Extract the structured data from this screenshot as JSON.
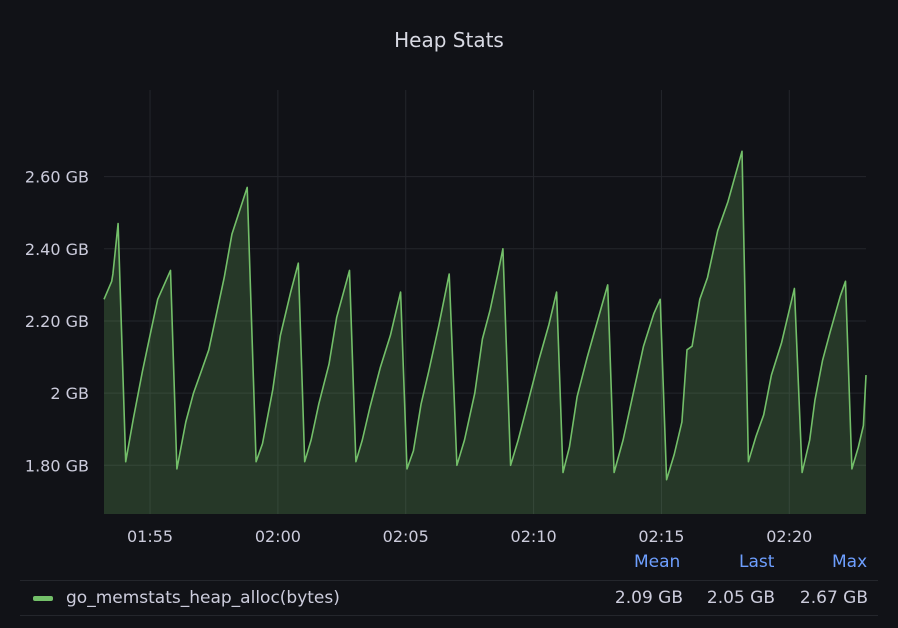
{
  "panel": {
    "title": "Heap Stats"
  },
  "legend": {
    "headers": {
      "mean": "Mean",
      "last": "Last",
      "max": "Max"
    },
    "series_name": "go_memstats_heap_alloc(bytes)",
    "mean": "2.09 GB",
    "last": "2.05 GB",
    "max": "2.67 GB",
    "color": "#73bf69"
  },
  "chart_data": {
    "type": "area",
    "title": "Heap Stats",
    "xlabel": "",
    "ylabel": "",
    "x_unit": "minutes since 01:53 (clock time)",
    "x_ticks": [
      {
        "x": 1.8,
        "label": "01:55"
      },
      {
        "x": 6.8,
        "label": "02:00"
      },
      {
        "x": 11.8,
        "label": "02:05"
      },
      {
        "x": 16.8,
        "label": "02:10"
      },
      {
        "x": 21.8,
        "label": "02:15"
      },
      {
        "x": 26.8,
        "label": "02:20"
      }
    ],
    "y_ticks": [
      {
        "y": 1.8,
        "label": "1.80 GB"
      },
      {
        "y": 2.0,
        "label": "2 GB"
      },
      {
        "y": 2.2,
        "label": "2.20 GB"
      },
      {
        "y": 2.4,
        "label": "2.40 GB"
      },
      {
        "y": 2.6,
        "label": "2.60 GB"
      }
    ],
    "xlim": [
      0,
      29.8
    ],
    "ylim": [
      1.665,
      2.84
    ],
    "grid": true,
    "legend_position": "bottom",
    "series": [
      {
        "name": "go_memstats_heap_alloc(bytes)",
        "color": "#73bf69",
        "points": [
          [
            0.0,
            2.26
          ],
          [
            0.3,
            2.31
          ],
          [
            0.35,
            2.33
          ],
          [
            0.55,
            2.47
          ],
          [
            0.85,
            1.81
          ],
          [
            1.15,
            1.93
          ],
          [
            1.5,
            2.06
          ],
          [
            1.8,
            2.16
          ],
          [
            2.1,
            2.26
          ],
          [
            2.6,
            2.34
          ],
          [
            2.85,
            1.79
          ],
          [
            3.2,
            1.92
          ],
          [
            3.5,
            2.0
          ],
          [
            3.8,
            2.06
          ],
          [
            4.1,
            2.12
          ],
          [
            4.4,
            2.22
          ],
          [
            4.7,
            2.32
          ],
          [
            5.0,
            2.44
          ],
          [
            5.6,
            2.57
          ],
          [
            5.95,
            1.81
          ],
          [
            6.2,
            1.86
          ],
          [
            6.6,
            2.01
          ],
          [
            6.9,
            2.16
          ],
          [
            7.3,
            2.28
          ],
          [
            7.6,
            2.36
          ],
          [
            7.85,
            1.81
          ],
          [
            8.1,
            1.87
          ],
          [
            8.4,
            1.97
          ],
          [
            8.8,
            2.08
          ],
          [
            9.1,
            2.21
          ],
          [
            9.6,
            2.34
          ],
          [
            9.85,
            1.81
          ],
          [
            10.1,
            1.87
          ],
          [
            10.4,
            1.96
          ],
          [
            10.8,
            2.07
          ],
          [
            11.2,
            2.16
          ],
          [
            11.6,
            2.28
          ],
          [
            11.85,
            1.79
          ],
          [
            12.1,
            1.84
          ],
          [
            12.4,
            1.97
          ],
          [
            12.7,
            2.06
          ],
          [
            13.1,
            2.19
          ],
          [
            13.5,
            2.33
          ],
          [
            13.8,
            1.8
          ],
          [
            14.1,
            1.87
          ],
          [
            14.5,
            2.0
          ],
          [
            14.8,
            2.15
          ],
          [
            15.1,
            2.23
          ],
          [
            15.4,
            2.33
          ],
          [
            15.6,
            2.4
          ],
          [
            15.9,
            1.8
          ],
          [
            16.2,
            1.87
          ],
          [
            16.6,
            1.98
          ],
          [
            17.0,
            2.09
          ],
          [
            17.4,
            2.19
          ],
          [
            17.7,
            2.28
          ],
          [
            17.95,
            1.78
          ],
          [
            18.2,
            1.85
          ],
          [
            18.5,
            1.99
          ],
          [
            18.9,
            2.1
          ],
          [
            19.3,
            2.2
          ],
          [
            19.7,
            2.3
          ],
          [
            19.95,
            1.78
          ],
          [
            20.3,
            1.87
          ],
          [
            20.7,
            2.0
          ],
          [
            21.1,
            2.13
          ],
          [
            21.5,
            2.22
          ],
          [
            21.75,
            2.26
          ],
          [
            22.0,
            1.76
          ],
          [
            22.3,
            1.83
          ],
          [
            22.6,
            1.92
          ],
          [
            22.8,
            2.12
          ],
          [
            23.0,
            2.13
          ],
          [
            23.3,
            2.26
          ],
          [
            23.6,
            2.32
          ],
          [
            24.0,
            2.45
          ],
          [
            24.4,
            2.53
          ],
          [
            24.95,
            2.67
          ],
          [
            25.2,
            1.81
          ],
          [
            25.5,
            1.88
          ],
          [
            25.8,
            1.94
          ],
          [
            26.1,
            2.05
          ],
          [
            26.5,
            2.14
          ],
          [
            26.8,
            2.23
          ],
          [
            27.0,
            2.29
          ],
          [
            27.3,
            1.78
          ],
          [
            27.6,
            1.87
          ],
          [
            27.8,
            1.98
          ],
          [
            28.1,
            2.09
          ],
          [
            28.4,
            2.17
          ],
          [
            28.8,
            2.27
          ],
          [
            29.0,
            2.31
          ],
          [
            29.25,
            1.79
          ],
          [
            29.5,
            1.85
          ],
          [
            29.7,
            1.91
          ],
          [
            29.8,
            2.05
          ]
        ]
      }
    ]
  }
}
